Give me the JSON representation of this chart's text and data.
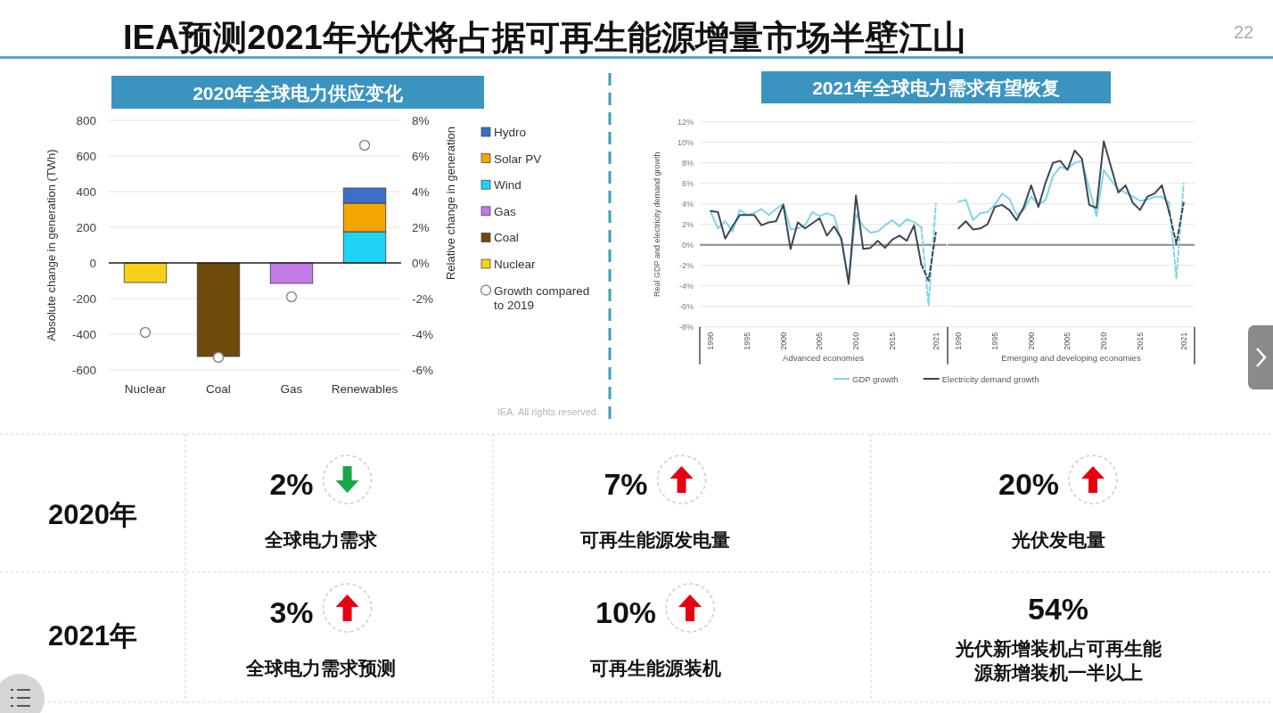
{
  "chart_data": [
    {
      "type": "other",
      "title": "IEA预测2021年光伏将占据可再生能源增量市场半壁江山",
      "annotations": [
        "22"
      ]
    },
    {
      "type": "bar",
      "title": "2020年全球电力供应变化",
      "categories": [
        "Nuclear",
        "Coal",
        "Gas",
        "Renewables"
      ],
      "stacked": true,
      "series": [
        {
          "name": "Nuclear",
          "color": "#f7d117",
          "values": [
            -110,
            null,
            null,
            null
          ]
        },
        {
          "name": "Coal",
          "color": "#6e4b0b",
          "values": [
            null,
            -525,
            null,
            null
          ]
        },
        {
          "name": "Gas",
          "color": "#c27ae8",
          "values": [
            null,
            null,
            -115,
            null
          ]
        },
        {
          "name": "Wind",
          "color": "#1fd3f4",
          "values": [
            null,
            null,
            null,
            175
          ]
        },
        {
          "name": "Solar PV",
          "color": "#f5a500",
          "values": [
            null,
            null,
            null,
            160
          ]
        },
        {
          "name": "Hydro",
          "color": "#3c6fc8",
          "values": [
            null,
            null,
            null,
            85
          ]
        },
        {
          "name": "Growth compared to 2019",
          "type": "scatter",
          "axis": "y2",
          "color": "#8c8c8c",
          "marker": "circle",
          "x": [
            "Nuclear",
            "Coal",
            "Gas",
            "Renewables"
          ],
          "values": [
            -3.9,
            -5.3,
            -1.9,
            6.6
          ]
        }
      ],
      "ylabel": "Absolute change in generation (TWh)",
      "y2label": "Relative change in generation",
      "ylim": [
        -600,
        800
      ],
      "yticks": [
        -600,
        -400,
        -200,
        0,
        200,
        400,
        600,
        800
      ],
      "y2lim": [
        -6,
        8
      ],
      "y2ticks": [
        {
          "value": -6,
          "label": "-6%"
        },
        {
          "value": -4,
          "label": "-4%"
        },
        {
          "value": -2,
          "label": "-2%"
        },
        {
          "value": 0,
          "label": "0%"
        },
        {
          "value": 2,
          "label": "2%"
        },
        {
          "value": 4,
          "label": "4%"
        },
        {
          "value": 6,
          "label": "6%"
        },
        {
          "value": 8,
          "label": "8%"
        }
      ],
      "grid": "y",
      "legend": "right",
      "annotations": [
        "IEA. All rights reserved."
      ]
    },
    {
      "type": "line",
      "title": "2021年全球电力需求有望恢复",
      "ylabel": "Real GDP and electricity demand growth",
      "xlabel": "Advanced economies",
      "xlim": [
        1988.5,
        2022.5
      ],
      "xticks": [
        1990,
        1995,
        2000,
        2005,
        2010,
        2015,
        2021
      ],
      "ylim": [
        -8,
        12
      ],
      "yticks": [
        {
          "value": -8,
          "label": "-8%"
        },
        {
          "value": -6,
          "label": "-6%"
        },
        {
          "value": -4,
          "label": "-4%"
        },
        {
          "value": -2,
          "label": "-2%"
        },
        {
          "value": 0,
          "label": "0%"
        },
        {
          "value": 2,
          "label": "2%"
        },
        {
          "value": 4,
          "label": "4%"
        },
        {
          "value": 6,
          "label": "6%"
        },
        {
          "value": 8,
          "label": "8%"
        },
        {
          "value": 10,
          "label": "10%"
        },
        {
          "value": 12,
          "label": "12%"
        }
      ],
      "grid": "y",
      "legend": "bottom",
      "ref_lines": [
        {
          "axis": "y",
          "value": 0,
          "color": "#8c8c8c"
        }
      ],
      "series": [
        {
          "name": "GDP growth",
          "color": "#7fd4ea",
          "x": [
            1990,
            1991,
            1992,
            1993,
            1994,
            1995,
            1996,
            1997,
            1998,
            1999,
            2000,
            2001,
            2002,
            2003,
            2004,
            2005,
            2006,
            2007,
            2008,
            2009,
            2010,
            2011,
            2012,
            2013,
            2014,
            2015,
            2016,
            2017,
            2018,
            2019
          ],
          "values": [
            3.2,
            1.6,
            2.3,
            1.3,
            3.4,
            2.9,
            3.1,
            3.5,
            2.9,
            3.5,
            4.0,
            1.5,
            1.6,
            1.9,
            3.2,
            2.8,
            3.1,
            2.8,
            0.3,
            -3.4,
            3.0,
            1.8,
            1.2,
            1.3,
            1.9,
            2.4,
            1.8,
            2.5,
            2.2,
            1.7
          ]
        },
        {
          "color": "#7fd4ea",
          "line_style": "dashed",
          "x": [
            2019,
            2020,
            2021
          ],
          "values": [
            1.7,
            -5.9,
            4.0
          ]
        },
        {
          "name": "Electricity demand growth",
          "color": "#3d4656",
          "x": [
            1990,
            1991,
            1992,
            1993,
            1994,
            1995,
            1996,
            1997,
            1998,
            1999,
            2000,
            2001,
            2002,
            2003,
            2004,
            2005,
            2006,
            2007,
            2008,
            2009,
            2010,
            2011,
            2012,
            2013,
            2014,
            2015,
            2016,
            2017,
            2018,
            2019
          ],
          "values": [
            3.3,
            3.2,
            0.6,
            1.8,
            2.9,
            2.9,
            2.9,
            1.9,
            2.2,
            2.3,
            3.9,
            -0.4,
            2.2,
            1.6,
            2.1,
            2.6,
            0.9,
            1.8,
            0.6,
            -3.8,
            4.8,
            -0.4,
            -0.3,
            0.4,
            -0.3,
            0.5,
            0.9,
            0.4,
            1.9,
            -1.9
          ]
        },
        {
          "color": "#3d4656",
          "line_style": "dashed",
          "x": [
            2019,
            2020,
            2021
          ],
          "values": [
            -1.9,
            -3.5,
            1.2
          ]
        }
      ]
    },
    {
      "type": "line",
      "xlabel": "Emerging and developing economies",
      "tick_labels": "x",
      "xlim": [
        1988.5,
        2022.5
      ],
      "xticks": [
        1990,
        1995,
        2000,
        2005,
        2010,
        2015,
        2021
      ],
      "ylim": [
        -8,
        12
      ],
      "yticks": [
        -8,
        -6,
        -4,
        -2,
        0,
        2,
        4,
        6,
        8,
        10,
        12
      ],
      "grid": "y",
      "ref_lines": [
        {
          "axis": "y",
          "value": 0,
          "color": "#8c8c8c"
        }
      ],
      "series": [
        {
          "color": "#7fd4ea",
          "x": [
            1990,
            1991,
            1992,
            1993,
            1994,
            1995,
            1996,
            1997,
            1998,
            1999,
            2000,
            2001,
            2002,
            2003,
            2004,
            2005,
            2006,
            2007,
            2008,
            2009,
            2010,
            2011,
            2012,
            2013,
            2014,
            2015,
            2016,
            2017,
            2018,
            2019
          ],
          "values": [
            4.2,
            4.4,
            2.4,
            3.1,
            3.2,
            3.9,
            5.0,
            4.5,
            2.9,
            3.4,
            4.7,
            3.9,
            4.4,
            6.7,
            7.6,
            7.4,
            8.0,
            8.2,
            5.5,
            2.8,
            7.3,
            6.3,
            5.4,
            5.1,
            4.7,
            4.3,
            4.4,
            4.7,
            4.7,
            4.1
          ]
        },
        {
          "color": "#7fd4ea",
          "line_style": "dashed",
          "x": [
            2019,
            2020,
            2021
          ],
          "values": [
            4.1,
            -3.3,
            6.0
          ]
        },
        {
          "color": "#3d4656",
          "x": [
            1990,
            1991,
            1992,
            1993,
            1994,
            1995,
            1996,
            1997,
            1998,
            1999,
            2000,
            2001,
            2002,
            2003,
            2004,
            2005,
            2006,
            2007,
            2008,
            2009,
            2010,
            2011,
            2012,
            2013,
            2014,
            2015,
            2016,
            2017,
            2018,
            2019
          ],
          "values": [
            1.6,
            2.3,
            1.5,
            1.6,
            2.0,
            3.7,
            3.9,
            3.4,
            2.4,
            3.7,
            5.8,
            3.7,
            6.1,
            8.0,
            8.2,
            7.3,
            9.2,
            8.4,
            3.9,
            3.6,
            10.1,
            7.6,
            5.1,
            5.8,
            4.1,
            3.4,
            4.7,
            5.0,
            5.8,
            3.2
          ]
        },
        {
          "color": "#3d4656",
          "line_style": "dashed",
          "x": [
            2019,
            2020,
            2021
          ],
          "values": [
            3.2,
            0.1,
            4.1
          ]
        }
      ]
    },
    {
      "type": "other",
      "y_categories": [
        "2020年",
        "2021年"
      ],
      "cell_labels": [
        [
          "2%",
          "7%",
          "20%"
        ],
        [
          "3%",
          "10%",
          "54%"
        ]
      ],
      "colors": [
        [
          "#1aa64a",
          "#e60012",
          "#e60012"
        ],
        [
          "#e60012",
          "#e60012",
          null
        ]
      ],
      "annotations": [
        "全球电力需求",
        "可再生能源发电量",
        "光伏发电量",
        "全球电力需求预测",
        "可再生能源装机",
        "光伏新增装机占可再生能源新增装机一半以上"
      ]
    }
  ]
}
